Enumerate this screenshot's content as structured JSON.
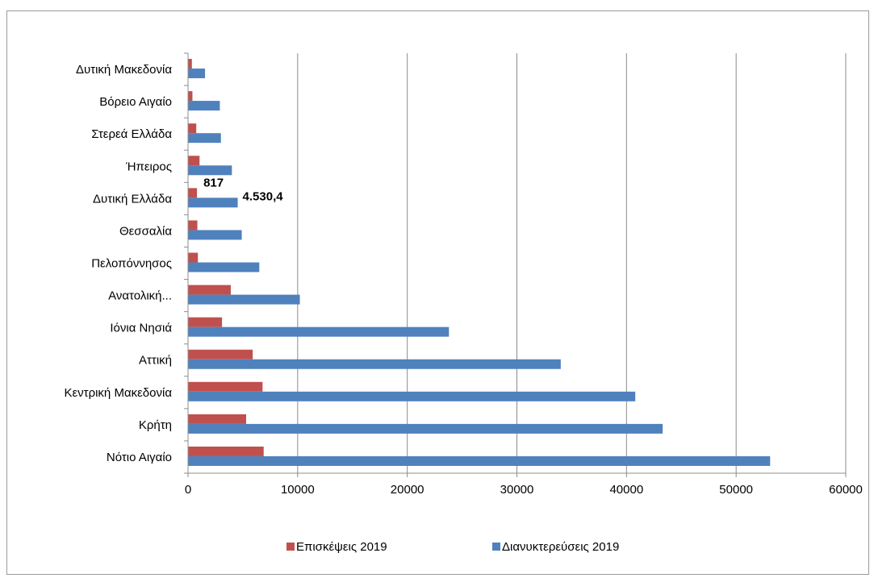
{
  "chart_data": {
    "type": "bar",
    "orientation": "horizontal",
    "categories": [
      "Δυτική Μακεδονία",
      "Βόρειο Αιγαίο",
      "Στερεά Ελλάδα",
      "Ήπειρος",
      "Δυτική Ελλάδα",
      "Θεσσαλία",
      "Πελοπόννησος",
      "Ανατολική...",
      "Ιόνια Νησιά",
      "Αττική",
      "Κεντρική Μακεδονία",
      "Κρήτη",
      "Νότιο Αιγαίο"
    ],
    "series": [
      {
        "name": "Επισκέψεις 2019",
        "color": "#c0504d",
        "values": [
          350,
          400,
          750,
          1050,
          817,
          850,
          900,
          3900,
          3100,
          5900,
          6800,
          5300,
          6900
        ]
      },
      {
        "name": "Διανυκτερεύσεις 2019",
        "color": "#4f81bd",
        "values": [
          1550,
          2900,
          3000,
          4000,
          4530.4,
          4900,
          6500,
          10200,
          23800,
          34000,
          40800,
          43300,
          53100
        ]
      }
    ],
    "data_labels": [
      {
        "category": "Δυτική Ελλάδα",
        "series": 0,
        "text": "817"
      },
      {
        "category": "Δυτική Ελλάδα",
        "series": 1,
        "text": "4.530,4"
      }
    ],
    "x_ticks": [
      "0",
      "10000",
      "20000",
      "30000",
      "40000",
      "50000",
      "60000"
    ],
    "xlim": [
      0,
      60000
    ],
    "grid": "vertical",
    "legend_position": "bottom",
    "title": "",
    "xlabel": "",
    "ylabel": ""
  }
}
